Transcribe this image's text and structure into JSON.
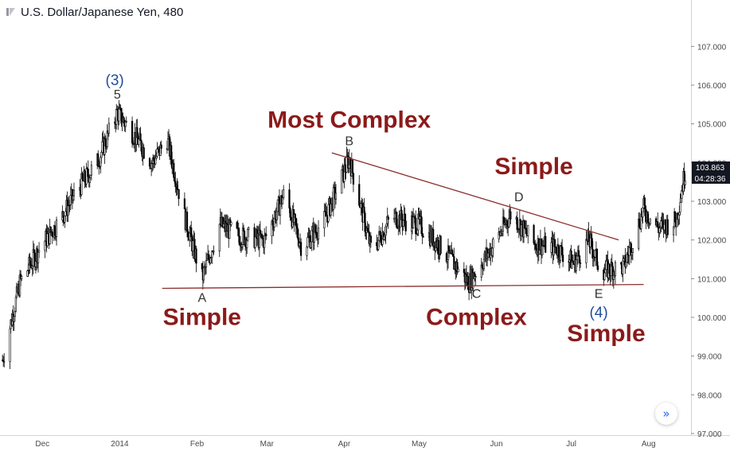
{
  "header": {
    "symbol_title": "U.S. Dollar/Japanese Yen, 480"
  },
  "price_badge": {
    "last_price": "103.863",
    "countdown": "04:28:36"
  },
  "chart_data": {
    "type": "candlestick",
    "title": "U.S. Dollar/Japanese Yen, 480",
    "y_ticks": [
      "97.000",
      "98.000",
      "99.000",
      "100.000",
      "101.000",
      "102.000",
      "103.000",
      "104.000",
      "105.000",
      "106.000",
      "107.000"
    ],
    "y_range": [
      96.8,
      108.0
    ],
    "x_ticks": [
      "Dec",
      "2014",
      "Feb",
      "Mar",
      "Apr",
      "May",
      "Jun",
      "Jul",
      "Aug"
    ],
    "price_path": [
      [
        "2013-11-15",
        98.9
      ],
      [
        "2013-11-22",
        100.9
      ],
      [
        "2013-12-01",
        101.9
      ],
      [
        "2013-12-08",
        102.5
      ],
      [
        "2013-12-15",
        103.3
      ],
      [
        "2013-12-23",
        104.0
      ],
      [
        "2013-12-31",
        105.3
      ],
      [
        "2014-01-08",
        104.6
      ],
      [
        "2014-01-14",
        104.0
      ],
      [
        "2014-01-20",
        104.6
      ],
      [
        "2014-01-27",
        102.6
      ],
      [
        "2014-02-03",
        101.0
      ],
      [
        "2014-02-10",
        102.4
      ],
      [
        "2014-02-18",
        102.1
      ],
      [
        "2014-02-28",
        102.0
      ],
      [
        "2014-03-08",
        103.2
      ],
      [
        "2014-03-15",
        101.8
      ],
      [
        "2014-03-24",
        102.5
      ],
      [
        "2014-04-03",
        104.1
      ],
      [
        "2014-04-12",
        101.7
      ],
      [
        "2014-04-20",
        102.6
      ],
      [
        "2014-05-01",
        102.4
      ],
      [
        "2014-05-10",
        101.8
      ],
      [
        "2014-05-21",
        100.9
      ],
      [
        "2014-05-31",
        101.9
      ],
      [
        "2014-06-07",
        102.7
      ],
      [
        "2014-06-16",
        101.9
      ],
      [
        "2014-06-25",
        101.8
      ],
      [
        "2014-07-02",
        101.4
      ],
      [
        "2014-07-08",
        102.0
      ],
      [
        "2014-07-13",
        101.2
      ],
      [
        "2014-07-22",
        101.3
      ],
      [
        "2014-07-30",
        102.8
      ],
      [
        "2014-08-05",
        102.3
      ],
      [
        "2014-08-12",
        102.5
      ],
      [
        "2014-08-16",
        103.9
      ]
    ],
    "trendlines": [
      {
        "name": "B-D",
        "from": [
          "2014-03-27",
          104.25
        ],
        "to": [
          "2014-07-20",
          102.0
        ]
      },
      {
        "name": "A-C-E",
        "from": [
          "2014-01-18",
          100.75
        ],
        "to": [
          "2014-07-30",
          100.85
        ]
      }
    ],
    "wave_labels": [
      {
        "text": "(3)",
        "date": "2013-12-30",
        "price": 106.0,
        "color": "#1f4e9c"
      },
      {
        "text": "5",
        "date": "2013-12-31",
        "price": 105.65,
        "color": "#333333"
      },
      {
        "text": "B",
        "date": "2014-04-03",
        "price": 104.45,
        "color": "#333333"
      },
      {
        "text": "D",
        "date": "2014-06-10",
        "price": 103.0,
        "color": "#333333"
      },
      {
        "text": "A",
        "date": "2014-02-03",
        "price": 100.4,
        "color": "#333333"
      },
      {
        "text": "C",
        "date": "2014-05-24",
        "price": 100.5,
        "color": "#333333"
      },
      {
        "text": "E",
        "date": "2014-07-12",
        "price": 100.5,
        "color": "#333333"
      },
      {
        "text": "(4)",
        "date": "2014-07-12",
        "price": 100.0,
        "color": "#1f4e9c"
      }
    ],
    "annotations": [
      {
        "text": "Most Complex",
        "date": "2014-04-03",
        "price": 104.9,
        "color": "#8b1a1a"
      },
      {
        "text": "Simple",
        "date": "2014-06-16",
        "price": 103.7,
        "color": "#8b1a1a"
      },
      {
        "text": "Simple",
        "date": "2014-02-03",
        "price": 99.8,
        "color": "#8b1a1a"
      },
      {
        "text": "Complex",
        "date": "2014-05-24",
        "price": 99.8,
        "color": "#8b1a1a"
      },
      {
        "text": "Simple",
        "date": "2014-07-15",
        "price": 99.38,
        "color": "#8b1a1a"
      }
    ],
    "colors": {
      "candles": "#000000",
      "trendline": "#8b2d2d",
      "axis_text": "#4a4a4a",
      "badge": "#131722"
    }
  }
}
